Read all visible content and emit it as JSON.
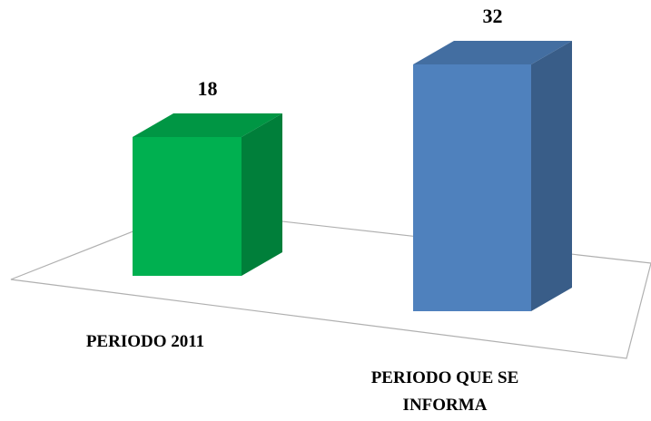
{
  "chart_data": {
    "type": "bar3d",
    "categories": [
      "PERIODO 2011",
      "PERIODO QUE SE INFORMA"
    ],
    "values": [
      18,
      32
    ],
    "colors": [
      "#00b050",
      "#4f81bd"
    ]
  }
}
